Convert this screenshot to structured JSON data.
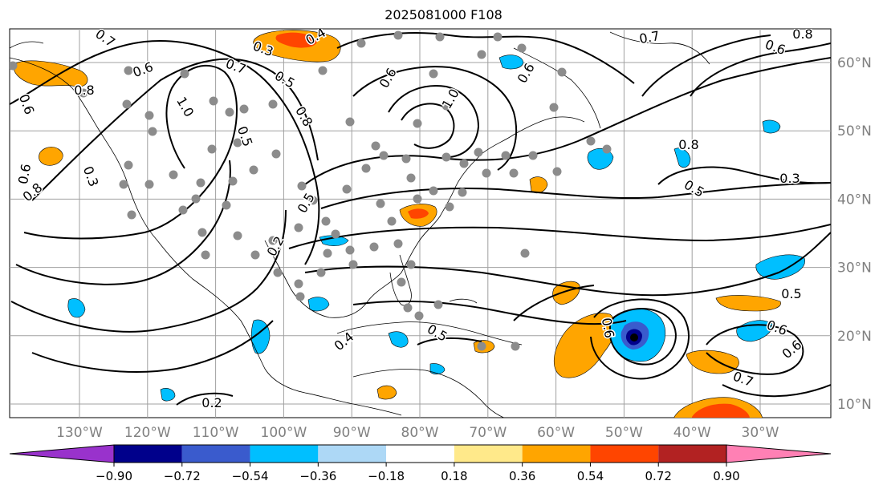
{
  "title": "2025081000 F108",
  "map": {
    "lon_labels": [
      "130°W",
      "120°W",
      "110°W",
      "100°W",
      "90°W",
      "80°W",
      "70°W",
      "60°W",
      "50°W",
      "40°W",
      "30°W"
    ],
    "lat_labels": [
      "60°N",
      "50°N",
      "40°N",
      "30°N",
      "20°N",
      "10°N"
    ],
    "lon_values": [
      -130,
      -120,
      -110,
      -100,
      -90,
      -80,
      -70,
      -60,
      -50,
      -40,
      -30
    ],
    "lat_values": [
      60,
      50,
      40,
      30,
      20,
      10
    ],
    "contour_labels": [
      "0.7",
      "0.4",
      "0.3",
      "0.5",
      "0.6",
      "0.7",
      "0.8",
      "0.6",
      "1.0",
      "0.6",
      "0.7",
      "0.8",
      "0.5",
      "0.6",
      "0.8",
      "1.0",
      "0.5",
      "0.6",
      "0.8",
      "0.3",
      "0.5",
      "0.2",
      "0.2",
      "0.4",
      "0.5",
      "0.6",
      "0.3",
      "0.5",
      "0.6",
      "0.6",
      "0.7",
      "0.8",
      "0.6"
    ],
    "station_color": "#8c8c8c",
    "land_outline_color": "#000000"
  },
  "colorbar": {
    "tick_labels": [
      "−0.90",
      "−0.72",
      "−0.54",
      "−0.36",
      "−0.18",
      "0.18",
      "0.36",
      "0.54",
      "0.72",
      "0.90"
    ],
    "levels": [
      -0.9,
      -0.72,
      -0.54,
      -0.36,
      -0.18,
      0.18,
      0.36,
      0.54,
      0.72,
      0.9
    ],
    "colors": [
      "#9932cc",
      "#00008b",
      "#3a5bcd",
      "#00bfff",
      "#add8f6",
      "#ffffff",
      "#ffe98a",
      "#ffa500",
      "#ff4500",
      "#b22222",
      "#ff80b4"
    ]
  }
}
